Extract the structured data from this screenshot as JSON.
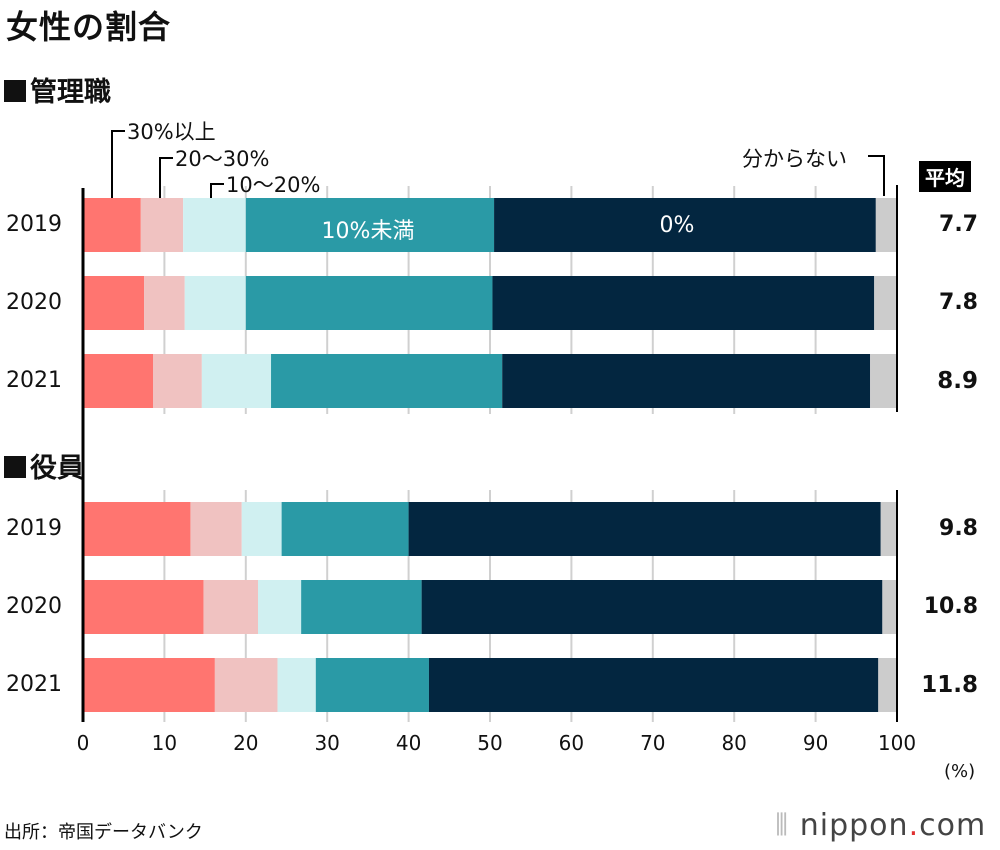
{
  "title": "女性の割合",
  "average_header": "平均",
  "source": "出所：帝国データバンク",
  "logo": {
    "main": "nippon",
    "dot": ".",
    "suffix": "com"
  },
  "chart_data": {
    "type": "bar",
    "orientation": "horizontal-stacked",
    "xlim": [
      0,
      100
    ],
    "xticks": [
      "0",
      "10",
      "20",
      "30",
      "40",
      "50",
      "60",
      "70",
      "80",
      "90",
      "100"
    ],
    "xunit": "(%)",
    "grid": true,
    "categories_legend": [
      "30%以上",
      "20〜30%",
      "10〜20%",
      "10%未満",
      "0%",
      "分からない"
    ],
    "colors": [
      "#ff7570",
      "#f0c2c1",
      "#d0f0f1",
      "#2a9aa6",
      "#032640",
      "#cccccc"
    ],
    "groups": [
      {
        "name": "管理職",
        "rows": [
          {
            "year": "2019",
            "values": [
              7.1,
              5.2,
              7.7,
              30.5,
              46.9,
              2.6
            ],
            "average": "7.7",
            "highlight": false
          },
          {
            "year": "2020",
            "values": [
              7.5,
              5.0,
              7.5,
              30.3,
              46.9,
              2.8
            ],
            "average": "7.8",
            "highlight": false
          },
          {
            "year": "2021",
            "values": [
              8.6,
              6.0,
              8.5,
              28.4,
              45.2,
              3.3
            ],
            "average": "8.9",
            "highlight": true
          }
        ]
      },
      {
        "name": "役員",
        "rows": [
          {
            "year": "2019",
            "values": [
              13.2,
              6.3,
              4.9,
              15.6,
              58.0,
              2.0
            ],
            "average": "9.8",
            "highlight": false
          },
          {
            "year": "2020",
            "values": [
              14.8,
              6.7,
              5.3,
              14.8,
              56.6,
              1.8
            ],
            "average": "10.8",
            "highlight": false
          },
          {
            "year": "2021",
            "values": [
              16.2,
              7.7,
              4.7,
              13.9,
              55.2,
              2.3
            ],
            "average": "11.8",
            "highlight": true
          }
        ]
      }
    ]
  }
}
